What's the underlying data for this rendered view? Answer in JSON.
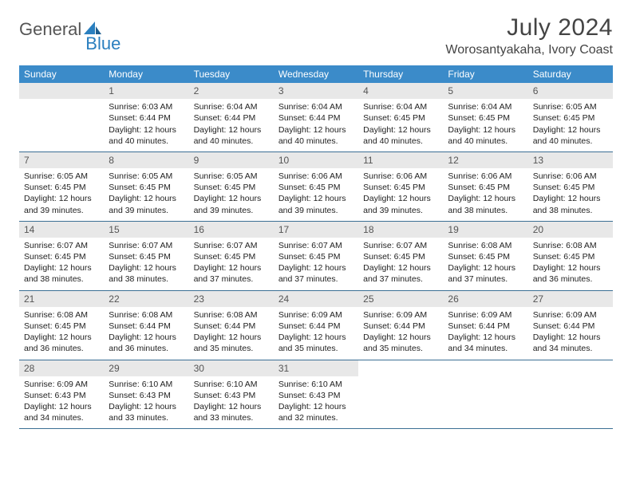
{
  "brand": {
    "part1": "General",
    "part2": "Blue"
  },
  "title": "July 2024",
  "location": "Worosantyakaha, Ivory Coast",
  "colors": {
    "header_bg": "#3b8bc9",
    "header_text": "#ffffff",
    "daynum_bg": "#e8e8e8",
    "border": "#3b6f94",
    "brand_gray": "#555555",
    "brand_blue": "#2a7fbf"
  },
  "weekdays": [
    "Sunday",
    "Monday",
    "Tuesday",
    "Wednesday",
    "Thursday",
    "Friday",
    "Saturday"
  ],
  "weeks": [
    [
      {
        "day": null
      },
      {
        "day": "1",
        "sunrise": "Sunrise: 6:03 AM",
        "sunset": "Sunset: 6:44 PM",
        "dl1": "Daylight: 12 hours",
        "dl2": "and 40 minutes."
      },
      {
        "day": "2",
        "sunrise": "Sunrise: 6:04 AM",
        "sunset": "Sunset: 6:44 PM",
        "dl1": "Daylight: 12 hours",
        "dl2": "and 40 minutes."
      },
      {
        "day": "3",
        "sunrise": "Sunrise: 6:04 AM",
        "sunset": "Sunset: 6:44 PM",
        "dl1": "Daylight: 12 hours",
        "dl2": "and 40 minutes."
      },
      {
        "day": "4",
        "sunrise": "Sunrise: 6:04 AM",
        "sunset": "Sunset: 6:45 PM",
        "dl1": "Daylight: 12 hours",
        "dl2": "and 40 minutes."
      },
      {
        "day": "5",
        "sunrise": "Sunrise: 6:04 AM",
        "sunset": "Sunset: 6:45 PM",
        "dl1": "Daylight: 12 hours",
        "dl2": "and 40 minutes."
      },
      {
        "day": "6",
        "sunrise": "Sunrise: 6:05 AM",
        "sunset": "Sunset: 6:45 PM",
        "dl1": "Daylight: 12 hours",
        "dl2": "and 40 minutes."
      }
    ],
    [
      {
        "day": "7",
        "sunrise": "Sunrise: 6:05 AM",
        "sunset": "Sunset: 6:45 PM",
        "dl1": "Daylight: 12 hours",
        "dl2": "and 39 minutes."
      },
      {
        "day": "8",
        "sunrise": "Sunrise: 6:05 AM",
        "sunset": "Sunset: 6:45 PM",
        "dl1": "Daylight: 12 hours",
        "dl2": "and 39 minutes."
      },
      {
        "day": "9",
        "sunrise": "Sunrise: 6:05 AM",
        "sunset": "Sunset: 6:45 PM",
        "dl1": "Daylight: 12 hours",
        "dl2": "and 39 minutes."
      },
      {
        "day": "10",
        "sunrise": "Sunrise: 6:06 AM",
        "sunset": "Sunset: 6:45 PM",
        "dl1": "Daylight: 12 hours",
        "dl2": "and 39 minutes."
      },
      {
        "day": "11",
        "sunrise": "Sunrise: 6:06 AM",
        "sunset": "Sunset: 6:45 PM",
        "dl1": "Daylight: 12 hours",
        "dl2": "and 39 minutes."
      },
      {
        "day": "12",
        "sunrise": "Sunrise: 6:06 AM",
        "sunset": "Sunset: 6:45 PM",
        "dl1": "Daylight: 12 hours",
        "dl2": "and 38 minutes."
      },
      {
        "day": "13",
        "sunrise": "Sunrise: 6:06 AM",
        "sunset": "Sunset: 6:45 PM",
        "dl1": "Daylight: 12 hours",
        "dl2": "and 38 minutes."
      }
    ],
    [
      {
        "day": "14",
        "sunrise": "Sunrise: 6:07 AM",
        "sunset": "Sunset: 6:45 PM",
        "dl1": "Daylight: 12 hours",
        "dl2": "and 38 minutes."
      },
      {
        "day": "15",
        "sunrise": "Sunrise: 6:07 AM",
        "sunset": "Sunset: 6:45 PM",
        "dl1": "Daylight: 12 hours",
        "dl2": "and 38 minutes."
      },
      {
        "day": "16",
        "sunrise": "Sunrise: 6:07 AM",
        "sunset": "Sunset: 6:45 PM",
        "dl1": "Daylight: 12 hours",
        "dl2": "and 37 minutes."
      },
      {
        "day": "17",
        "sunrise": "Sunrise: 6:07 AM",
        "sunset": "Sunset: 6:45 PM",
        "dl1": "Daylight: 12 hours",
        "dl2": "and 37 minutes."
      },
      {
        "day": "18",
        "sunrise": "Sunrise: 6:07 AM",
        "sunset": "Sunset: 6:45 PM",
        "dl1": "Daylight: 12 hours",
        "dl2": "and 37 minutes."
      },
      {
        "day": "19",
        "sunrise": "Sunrise: 6:08 AM",
        "sunset": "Sunset: 6:45 PM",
        "dl1": "Daylight: 12 hours",
        "dl2": "and 37 minutes."
      },
      {
        "day": "20",
        "sunrise": "Sunrise: 6:08 AM",
        "sunset": "Sunset: 6:45 PM",
        "dl1": "Daylight: 12 hours",
        "dl2": "and 36 minutes."
      }
    ],
    [
      {
        "day": "21",
        "sunrise": "Sunrise: 6:08 AM",
        "sunset": "Sunset: 6:45 PM",
        "dl1": "Daylight: 12 hours",
        "dl2": "and 36 minutes."
      },
      {
        "day": "22",
        "sunrise": "Sunrise: 6:08 AM",
        "sunset": "Sunset: 6:44 PM",
        "dl1": "Daylight: 12 hours",
        "dl2": "and 36 minutes."
      },
      {
        "day": "23",
        "sunrise": "Sunrise: 6:08 AM",
        "sunset": "Sunset: 6:44 PM",
        "dl1": "Daylight: 12 hours",
        "dl2": "and 35 minutes."
      },
      {
        "day": "24",
        "sunrise": "Sunrise: 6:09 AM",
        "sunset": "Sunset: 6:44 PM",
        "dl1": "Daylight: 12 hours",
        "dl2": "and 35 minutes."
      },
      {
        "day": "25",
        "sunrise": "Sunrise: 6:09 AM",
        "sunset": "Sunset: 6:44 PM",
        "dl1": "Daylight: 12 hours",
        "dl2": "and 35 minutes."
      },
      {
        "day": "26",
        "sunrise": "Sunrise: 6:09 AM",
        "sunset": "Sunset: 6:44 PM",
        "dl1": "Daylight: 12 hours",
        "dl2": "and 34 minutes."
      },
      {
        "day": "27",
        "sunrise": "Sunrise: 6:09 AM",
        "sunset": "Sunset: 6:44 PM",
        "dl1": "Daylight: 12 hours",
        "dl2": "and 34 minutes."
      }
    ],
    [
      {
        "day": "28",
        "sunrise": "Sunrise: 6:09 AM",
        "sunset": "Sunset: 6:43 PM",
        "dl1": "Daylight: 12 hours",
        "dl2": "and 34 minutes."
      },
      {
        "day": "29",
        "sunrise": "Sunrise: 6:10 AM",
        "sunset": "Sunset: 6:43 PM",
        "dl1": "Daylight: 12 hours",
        "dl2": "and 33 minutes."
      },
      {
        "day": "30",
        "sunrise": "Sunrise: 6:10 AM",
        "sunset": "Sunset: 6:43 PM",
        "dl1": "Daylight: 12 hours",
        "dl2": "and 33 minutes."
      },
      {
        "day": "31",
        "sunrise": "Sunrise: 6:10 AM",
        "sunset": "Sunset: 6:43 PM",
        "dl1": "Daylight: 12 hours",
        "dl2": "and 32 minutes."
      },
      {
        "day": null
      },
      {
        "day": null
      },
      {
        "day": null
      }
    ]
  ]
}
